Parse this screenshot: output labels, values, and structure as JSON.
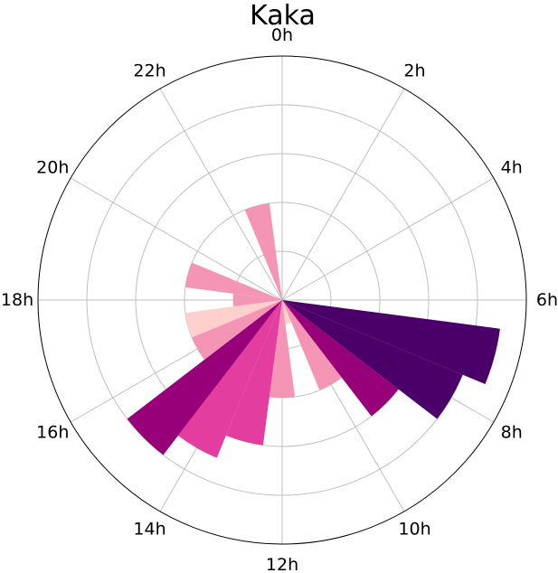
{
  "chart_data": {
    "type": "polar-bar",
    "title": "Kaka",
    "theta_tick_labels": [
      "0h",
      "2h",
      "4h",
      "6h",
      "8h",
      "10h",
      "12h",
      "14h",
      "16h",
      "18h",
      "20h",
      "22h"
    ],
    "hours": [
      0,
      1,
      2,
      3,
      4,
      5,
      6,
      7,
      8,
      9,
      10,
      11,
      12,
      13,
      14,
      15,
      16,
      17,
      18,
      19,
      20,
      21,
      22,
      23
    ],
    "values": [
      0,
      0,
      0,
      0,
      0,
      0,
      0,
      9,
      8,
      6,
      4,
      1,
      4,
      6,
      7,
      8,
      4,
      4,
      2,
      4,
      0,
      0,
      0,
      4
    ],
    "colors": [
      "#ffffff",
      "#ffffff",
      "#ffffff",
      "#ffffff",
      "#ffffff",
      "#ffffff",
      "#ffffff",
      "#4a0068",
      "#4a0068",
      "#970078",
      "#f595b5",
      "#fdd0cd",
      "#f595b5",
      "#e23d9f",
      "#e23d9f",
      "#970078",
      "#f595b5",
      "#fdd0cd",
      "#f595b5",
      "#f595b5",
      "#ffffff",
      "#ffffff",
      "#ffffff",
      "#f595b5"
    ],
    "rlim": [
      0,
      10
    ],
    "r_gridlines": [
      2,
      4,
      6,
      8
    ],
    "direction": "clockwise",
    "zero_location": "top",
    "grid": true
  }
}
